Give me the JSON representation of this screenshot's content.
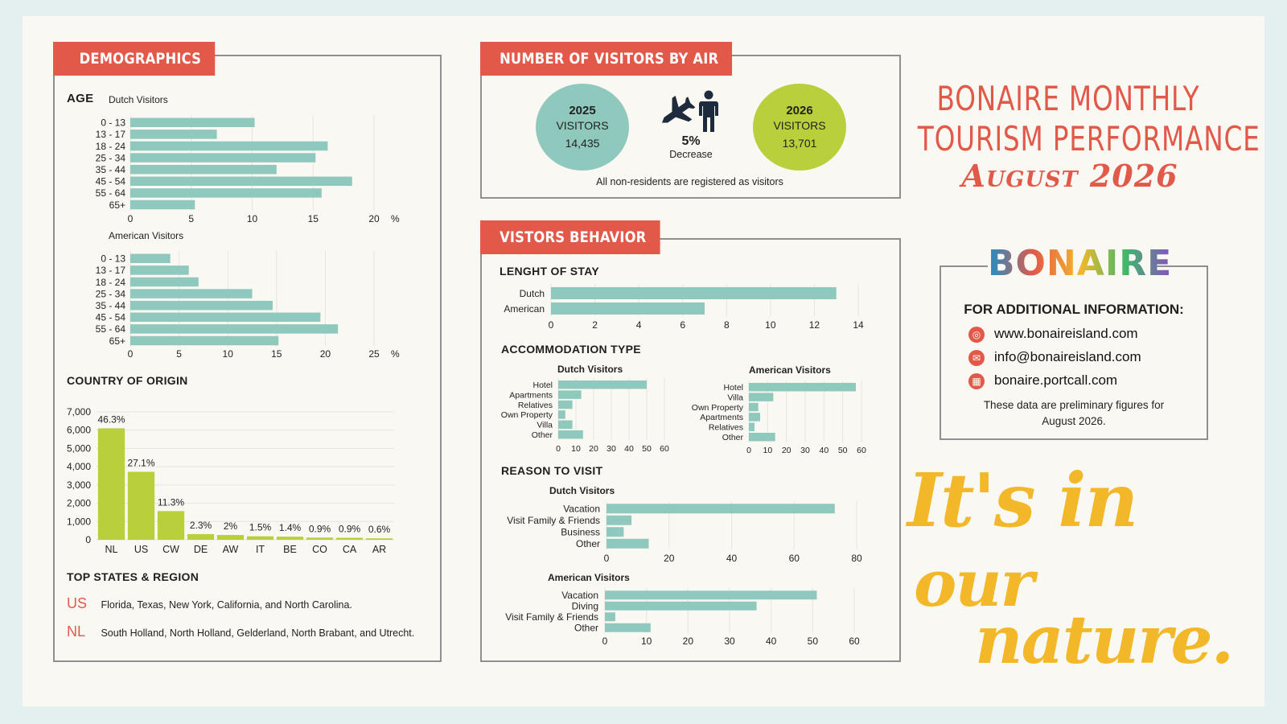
{
  "colors": {
    "accent": "#e2594a",
    "teal": "#8fc8bd",
    "lime": "#b9cf3c",
    "yellow": "#f3b829"
  },
  "demographics": {
    "tag": "DEMOGRAPHICS",
    "age_heading": "AGE",
    "origin_heading": "COUNTRY OF ORIGIN",
    "states_heading": "TOP STATES & REGION",
    "states": [
      {
        "code": "US",
        "text": "Florida, Texas, New York, California, and North Carolina."
      },
      {
        "code": "NL",
        "text": "South Holland, North Holland, Gelderland, North Brabant, and Utrecht."
      }
    ]
  },
  "air": {
    "tag": "NUMBER OF VISITORS BY AIR",
    "left_year": "2025",
    "left_label": "VISITORS",
    "left_value": "14,435",
    "right_year": "2026",
    "right_label": "VISITORS",
    "right_value": "13,701",
    "change_value": "5%",
    "change_label": "Decrease",
    "note": "All non-residents are registered as visitors",
    "icons": [
      "airplane-icon",
      "person-icon"
    ]
  },
  "behavior": {
    "tag": "VISTORS BEHAVIOR",
    "stay_heading": "LENGHT OF STAY",
    "accom_heading": "ACCOMMODATION TYPE",
    "reason_heading": "REASON TO VISIT"
  },
  "title": {
    "line1": "BONAIRE MONTHLY",
    "line2": "TOURISM PERFORMANCE",
    "line3": "August 2026"
  },
  "contact": {
    "logo": "BONAIRE",
    "heading": "FOR ADDITIONAL INFORMATION:",
    "website": "www.bonaireisland.com",
    "email": "info@bonaireisland.com",
    "portal": "bonaire.portcall.com",
    "note_line1": "These data are preliminary figures for",
    "note_line2": "August 2026.",
    "icons": [
      "globe-icon",
      "mail-icon",
      "calendar-icon"
    ]
  },
  "slogan": {
    "line1": "It's in",
    "line2": "our",
    "line3": "nature."
  },
  "chart_data": [
    {
      "id": "age-dutch",
      "type": "bar",
      "orientation": "horizontal",
      "title": "Dutch Visitors",
      "categories": [
        "0 - 13",
        "13 - 17",
        "18 - 24",
        "25 - 34",
        "35 - 44",
        "45 - 54",
        "55 - 64",
        "65+"
      ],
      "values": [
        10.2,
        7.1,
        16.2,
        15.2,
        12.0,
        18.2,
        15.7,
        5.3
      ],
      "xlim": [
        0,
        20
      ],
      "ticks": [
        0,
        5,
        10,
        15,
        20
      ],
      "unit": "%"
    },
    {
      "id": "age-american",
      "type": "bar",
      "orientation": "horizontal",
      "title": "American Visitors",
      "categories": [
        "0 - 13",
        "13 - 17",
        "18 - 24",
        "25 - 34",
        "35 - 44",
        "45 - 54",
        "55 - 64",
        "65+"
      ],
      "values": [
        4.1,
        6.0,
        7.0,
        12.5,
        14.6,
        19.5,
        21.3,
        15.2
      ],
      "xlim": [
        0,
        25
      ],
      "ticks": [
        0,
        5,
        10,
        15,
        20,
        25
      ],
      "unit": "%"
    },
    {
      "id": "origin",
      "type": "bar",
      "orientation": "vertical",
      "categories": [
        "NL",
        "US",
        "CW",
        "DE",
        "AW",
        "IT",
        "BE",
        "CO",
        "CA",
        "AR"
      ],
      "values": [
        6100,
        3720,
        1570,
        310,
        260,
        190,
        170,
        120,
        110,
        80
      ],
      "labels": [
        "46.3%",
        "27.1%",
        "11.3%",
        "2.3%",
        "2%",
        "1.5%",
        "1.4%",
        "0.9%",
        "0.9%",
        "0.6%"
      ],
      "ylim": [
        0,
        7000
      ],
      "ticks": [
        0,
        1000,
        2000,
        3000,
        4000,
        5000,
        6000,
        7000
      ],
      "tick_labels": [
        "0",
        "1,000",
        "2,000",
        "3,000",
        "4,000",
        "5,000",
        "6,000",
        "7,000"
      ]
    },
    {
      "id": "stay",
      "type": "bar",
      "orientation": "horizontal",
      "categories": [
        "Dutch",
        "American"
      ],
      "values": [
        13,
        7
      ],
      "xlim": [
        0,
        14
      ],
      "ticks": [
        0,
        2,
        4,
        6,
        8,
        10,
        12,
        14
      ]
    },
    {
      "id": "accom-dutch",
      "type": "bar",
      "orientation": "horizontal",
      "title": "Dutch Visitors",
      "categories": [
        "Hotel",
        "Apartments",
        "Relatives",
        "Own Property",
        "Villa",
        "Other"
      ],
      "values": [
        50,
        13,
        8,
        4,
        8,
        14
      ],
      "xlim": [
        0,
        60
      ],
      "ticks": [
        0,
        10,
        20,
        30,
        40,
        50,
        60
      ]
    },
    {
      "id": "accom-american",
      "type": "bar",
      "orientation": "horizontal",
      "title": "American Visitors",
      "categories": [
        "Hotel",
        "Villa",
        "Own Property",
        "Apartments",
        "Relatives",
        "Other"
      ],
      "values": [
        57,
        13,
        5,
        6,
        3,
        14
      ],
      "xlim": [
        0,
        60
      ],
      "ticks": [
        0,
        10,
        20,
        30,
        40,
        50,
        60
      ]
    },
    {
      "id": "reason-dutch",
      "type": "bar",
      "orientation": "horizontal",
      "title": "Dutch Visitors",
      "categories": [
        "Vacation",
        "Visit Family & Friends",
        "Business",
        "Other"
      ],
      "values": [
        73,
        8,
        5.5,
        13.5
      ],
      "xlim": [
        0,
        80
      ],
      "ticks": [
        0,
        20,
        40,
        60,
        80
      ]
    },
    {
      "id": "reason-american",
      "type": "bar",
      "orientation": "horizontal",
      "title": "American Visitors",
      "categories": [
        "Vacation",
        "Diving",
        "Visit Family & Friends",
        "Other"
      ],
      "values": [
        51,
        36.5,
        2.5,
        11
      ],
      "xlim": [
        0,
        60
      ],
      "ticks": [
        0,
        10,
        20,
        30,
        40,
        50,
        60
      ]
    }
  ]
}
